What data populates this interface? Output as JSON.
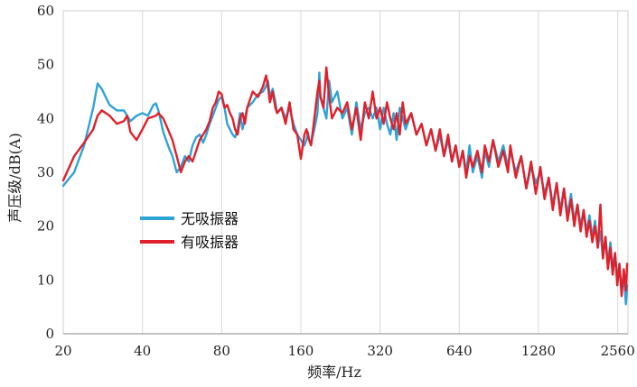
{
  "chart_data": {
    "type": "line",
    "title": "",
    "xlabel": "频率/Hz",
    "ylabel": "声压级/dB(A)",
    "x_scale": "log2",
    "xlim": [
      20,
      2800
    ],
    "ylim": [
      0,
      60
    ],
    "x_ticks": [
      20,
      40,
      80,
      160,
      320,
      640,
      1280,
      2560
    ],
    "y_ticks": [
      0,
      10,
      20,
      30,
      40,
      50,
      60
    ],
    "grid": "vertical",
    "legend_position": "middle-left",
    "series": [
      {
        "name": "无吸振器",
        "color": "#2ea3d6",
        "points": [
          [
            20,
            27.5
          ],
          [
            22,
            30
          ],
          [
            24,
            35
          ],
          [
            26,
            42
          ],
          [
            27,
            46.5
          ],
          [
            28,
            45.5
          ],
          [
            30,
            42.5
          ],
          [
            32,
            41.5
          ],
          [
            34,
            41.5
          ],
          [
            36,
            39.5
          ],
          [
            38,
            40.5
          ],
          [
            40,
            41
          ],
          [
            42,
            40.5
          ],
          [
            44,
            42.5
          ],
          [
            45,
            42.8
          ],
          [
            46,
            41.5
          ],
          [
            48,
            37.5
          ],
          [
            50,
            35
          ],
          [
            52,
            33
          ],
          [
            54,
            30
          ],
          [
            56,
            31
          ],
          [
            58,
            33
          ],
          [
            60,
            32
          ],
          [
            62,
            35
          ],
          [
            64,
            36.5
          ],
          [
            66,
            37
          ],
          [
            68,
            35.5
          ],
          [
            70,
            37
          ],
          [
            72,
            39
          ],
          [
            74,
            40.5
          ],
          [
            76,
            42
          ],
          [
            78,
            43.5
          ],
          [
            80,
            44
          ],
          [
            82,
            42
          ],
          [
            84,
            39
          ],
          [
            86,
            38
          ],
          [
            88,
            37
          ],
          [
            90,
            36.5
          ],
          [
            92,
            38
          ],
          [
            94,
            41
          ],
          [
            96,
            38
          ],
          [
            98,
            40
          ],
          [
            100,
            42
          ],
          [
            105,
            43
          ],
          [
            110,
            44.5
          ],
          [
            115,
            45
          ],
          [
            118,
            46
          ],
          [
            120,
            47
          ],
          [
            122,
            44
          ],
          [
            125,
            45.5
          ],
          [
            128,
            43
          ],
          [
            130,
            41
          ],
          [
            135,
            42
          ],
          [
            140,
            40
          ],
          [
            145,
            42
          ],
          [
            150,
            39
          ],
          [
            155,
            37
          ],
          [
            160,
            36
          ],
          [
            165,
            35
          ],
          [
            168,
            36
          ],
          [
            170,
            37.5
          ],
          [
            172,
            36
          ],
          [
            175,
            35.5
          ],
          [
            180,
            38
          ],
          [
            185,
            41
          ],
          [
            188,
            48.5
          ],
          [
            190,
            44
          ],
          [
            195,
            42
          ],
          [
            200,
            40
          ],
          [
            205,
            47
          ],
          [
            210,
            43
          ],
          [
            220,
            45
          ],
          [
            230,
            40
          ],
          [
            240,
            42
          ],
          [
            250,
            37
          ],
          [
            260,
            43
          ],
          [
            270,
            38
          ],
          [
            280,
            41
          ],
          [
            290,
            42
          ],
          [
            300,
            40
          ],
          [
            310,
            42
          ],
          [
            320,
            38
          ],
          [
            330,
            42
          ],
          [
            340,
            39
          ],
          [
            350,
            37
          ],
          [
            360,
            41
          ],
          [
            370,
            36
          ],
          [
            380,
            42
          ],
          [
            390,
            40
          ],
          [
            400,
            38
          ],
          [
            420,
            41
          ],
          [
            440,
            37
          ],
          [
            460,
            39
          ],
          [
            480,
            35
          ],
          [
            500,
            38
          ],
          [
            520,
            34
          ],
          [
            540,
            37
          ],
          [
            560,
            33
          ],
          [
            580,
            36
          ],
          [
            600,
            32
          ],
          [
            620,
            35
          ],
          [
            640,
            31
          ],
          [
            660,
            34
          ],
          [
            680,
            30
          ],
          [
            700,
            35
          ],
          [
            720,
            30
          ],
          [
            750,
            33
          ],
          [
            780,
            29
          ],
          [
            800,
            34
          ],
          [
            830,
            31
          ],
          [
            860,
            36
          ],
          [
            900,
            32
          ],
          [
            940,
            35
          ],
          [
            980,
            31
          ],
          [
            1000,
            34
          ],
          [
            1050,
            30
          ],
          [
            1100,
            33
          ],
          [
            1150,
            27
          ],
          [
            1200,
            31
          ],
          [
            1250,
            28
          ],
          [
            1300,
            30
          ],
          [
            1350,
            26
          ],
          [
            1400,
            29
          ],
          [
            1450,
            24
          ],
          [
            1500,
            28
          ],
          [
            1550,
            23
          ],
          [
            1600,
            27
          ],
          [
            1650,
            22
          ],
          [
            1700,
            26
          ],
          [
            1750,
            21
          ],
          [
            1800,
            24
          ],
          [
            1850,
            20
          ],
          [
            1900,
            23
          ],
          [
            1950,
            19
          ],
          [
            2000,
            22
          ],
          [
            2050,
            18
          ],
          [
            2100,
            21
          ],
          [
            2150,
            16
          ],
          [
            2200,
            19
          ],
          [
            2250,
            14
          ],
          [
            2300,
            18
          ],
          [
            2350,
            13
          ],
          [
            2400,
            17
          ],
          [
            2450,
            12
          ],
          [
            2500,
            15
          ],
          [
            2550,
            10
          ],
          [
            2600,
            13
          ],
          [
            2650,
            8
          ],
          [
            2700,
            11
          ],
          [
            2750,
            5.5
          ],
          [
            2780,
            9
          ]
        ]
      },
      {
        "name": "有吸振器",
        "color": "#e0202a",
        "points": [
          [
            20,
            28.5
          ],
          [
            22,
            33
          ],
          [
            24,
            35.5
          ],
          [
            26,
            38
          ],
          [
            27,
            40.5
          ],
          [
            28,
            41.5
          ],
          [
            30,
            40.5
          ],
          [
            32,
            39
          ],
          [
            34,
            39.5
          ],
          [
            35,
            40.5
          ],
          [
            36,
            37.5
          ],
          [
            38,
            36
          ],
          [
            40,
            38
          ],
          [
            42,
            40
          ],
          [
            45,
            40.5
          ],
          [
            46,
            41
          ],
          [
            48,
            40
          ],
          [
            50,
            38
          ],
          [
            52,
            36
          ],
          [
            54,
            33
          ],
          [
            56,
            30
          ],
          [
            58,
            32
          ],
          [
            60,
            33
          ],
          [
            62,
            32
          ],
          [
            64,
            34
          ],
          [
            66,
            36
          ],
          [
            68,
            37
          ],
          [
            70,
            38
          ],
          [
            72,
            39.5
          ],
          [
            74,
            42
          ],
          [
            76,
            43
          ],
          [
            78,
            45
          ],
          [
            80,
            44.5
          ],
          [
            82,
            42
          ],
          [
            84,
            42.5
          ],
          [
            86,
            41
          ],
          [
            88,
            40
          ],
          [
            90,
            38
          ],
          [
            92,
            37
          ],
          [
            94,
            40
          ],
          [
            96,
            41
          ],
          [
            98,
            39
          ],
          [
            100,
            42
          ],
          [
            105,
            45
          ],
          [
            110,
            44
          ],
          [
            115,
            46
          ],
          [
            118,
            48
          ],
          [
            120,
            46
          ],
          [
            122,
            43
          ],
          [
            125,
            45
          ],
          [
            128,
            42
          ],
          [
            130,
            41
          ],
          [
            135,
            42
          ],
          [
            140,
            39
          ],
          [
            145,
            43
          ],
          [
            150,
            38
          ],
          [
            155,
            37
          ],
          [
            160,
            32.5
          ],
          [
            165,
            37
          ],
          [
            168,
            38
          ],
          [
            170,
            37
          ],
          [
            172,
            36
          ],
          [
            175,
            35
          ],
          [
            180,
            40
          ],
          [
            185,
            45
          ],
          [
            188,
            47
          ],
          [
            190,
            44
          ],
          [
            195,
            42
          ],
          [
            200,
            49.5
          ],
          [
            205,
            44
          ],
          [
            210,
            40
          ],
          [
            220,
            42
          ],
          [
            230,
            41
          ],
          [
            240,
            43
          ],
          [
            250,
            38
          ],
          [
            260,
            42
          ],
          [
            270,
            36
          ],
          [
            280,
            43
          ],
          [
            290,
            40
          ],
          [
            300,
            45
          ],
          [
            310,
            40
          ],
          [
            320,
            42
          ],
          [
            330,
            39
          ],
          [
            340,
            43
          ],
          [
            350,
            40
          ],
          [
            360,
            38
          ],
          [
            370,
            41
          ],
          [
            380,
            37
          ],
          [
            390,
            43
          ],
          [
            400,
            39
          ],
          [
            420,
            41
          ],
          [
            440,
            37
          ],
          [
            460,
            39
          ],
          [
            480,
            35
          ],
          [
            500,
            38
          ],
          [
            520,
            34
          ],
          [
            540,
            38
          ],
          [
            560,
            33
          ],
          [
            580,
            37
          ],
          [
            600,
            32
          ],
          [
            620,
            35
          ],
          [
            640,
            31
          ],
          [
            660,
            34
          ],
          [
            680,
            29
          ],
          [
            700,
            33
          ],
          [
            720,
            31
          ],
          [
            750,
            34
          ],
          [
            780,
            30
          ],
          [
            800,
            35
          ],
          [
            830,
            32
          ],
          [
            860,
            36
          ],
          [
            900,
            31
          ],
          [
            940,
            34
          ],
          [
            980,
            30
          ],
          [
            1000,
            35
          ],
          [
            1050,
            29
          ],
          [
            1100,
            33
          ],
          [
            1150,
            27
          ],
          [
            1200,
            32
          ],
          [
            1250,
            26
          ],
          [
            1300,
            31
          ],
          [
            1350,
            25
          ],
          [
            1400,
            29
          ],
          [
            1450,
            23
          ],
          [
            1500,
            28
          ],
          [
            1550,
            22
          ],
          [
            1600,
            27
          ],
          [
            1650,
            21
          ],
          [
            1700,
            25
          ],
          [
            1750,
            20
          ],
          [
            1800,
            24
          ],
          [
            1850,
            19
          ],
          [
            1900,
            23
          ],
          [
            1950,
            18
          ],
          [
            2000,
            21
          ],
          [
            2050,
            17
          ],
          [
            2100,
            20
          ],
          [
            2150,
            16
          ],
          [
            2200,
            24
          ],
          [
            2250,
            14
          ],
          [
            2300,
            18
          ],
          [
            2350,
            12
          ],
          [
            2400,
            16
          ],
          [
            2450,
            11
          ],
          [
            2500,
            15
          ],
          [
            2550,
            9
          ],
          [
            2600,
            13
          ],
          [
            2650,
            7
          ],
          [
            2700,
            12
          ],
          [
            2750,
            8
          ],
          [
            2780,
            13
          ]
        ]
      }
    ]
  }
}
